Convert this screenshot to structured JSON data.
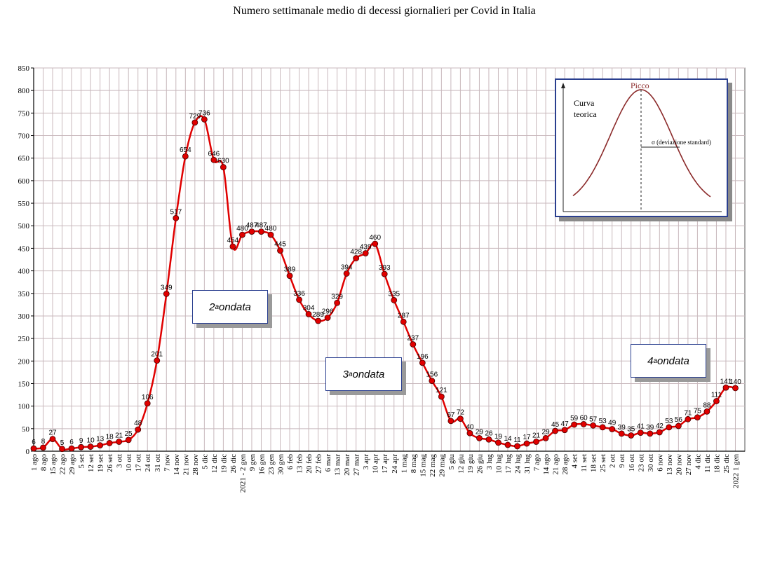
{
  "chart_data": {
    "type": "line",
    "title": "Numero settimanale medio di decessi giornalieri per Covid in Italia",
    "ylim": [
      0,
      850
    ],
    "yticks": [
      0,
      50,
      100,
      150,
      200,
      250,
      300,
      350,
      400,
      450,
      500,
      550,
      600,
      650,
      700,
      750,
      800,
      850
    ],
    "grid": true,
    "line_color": "#e00000",
    "marker_color": "#e00000",
    "categories": [
      "1 ago",
      "8 ago",
      "15 ago",
      "22 ago",
      "29 ago",
      "5 set",
      "12 set",
      "19 set",
      "26 set",
      "3 ott",
      "10 ott",
      "17 ott",
      "24 ott",
      "31 ott",
      "7 nov",
      "14 nov",
      "21 nov",
      "28 nov",
      "5 dic",
      "12 dic",
      "19 dic",
      "26 dic",
      "2021 - 2 gen",
      "9 gen",
      "16 gen",
      "23 gen",
      "30 gen",
      "6 feb",
      "13 feb",
      "20 feb",
      "27 feb",
      "6 mar",
      "13 mar",
      "20 mar",
      "27 mar",
      "3 apr",
      "10 apr",
      "17 apr",
      "24 apr",
      "1 mag",
      "8 mag",
      "15 mag",
      "22 mag",
      "29 mag",
      "5 giu",
      "12 giu",
      "19 giu",
      "26 giu",
      "3 lug",
      "10 lug",
      "17 lug",
      "24 lug",
      "31 lug",
      "7 ago",
      "14 ago",
      "21 ago",
      "28 ago",
      "4 set",
      "11 set",
      "18 set",
      "25 set",
      "2 ott",
      "9 ott",
      "16 ott",
      "23 ott",
      "30 ott",
      "6 nov",
      "13 nov",
      "20 nov",
      "27 nov",
      "4 dic",
      "11 dic",
      "18 dic",
      "25 dic",
      "2022 1 gen"
    ],
    "category_labels_shown": [
      "1 ago",
      "8 ago",
      "15 ago",
      "22 ago",
      "29 ago",
      "5 set",
      "12 set",
      "19 set",
      "26 set",
      "3 ott",
      "10 ott",
      "17 ott",
      "24 ott",
      "31 ott",
      "7 nov",
      "14 nov",
      "21 nov",
      "28 nov",
      "5 dic",
      "12 dic",
      "19 dic",
      "26 dic",
      "2021 - 2 gen",
      "9 gen",
      "16 gen",
      "23 gen",
      "30 gen",
      "6 feb",
      "13 feb",
      "20 feb",
      "27 feb",
      "6 mar",
      "13 mar",
      "20 mar",
      "27 mar",
      "3 apr",
      "10 apr",
      "17 apr",
      "24 apr",
      "1 mag",
      "8 mag",
      "15 mag",
      "22 mag",
      "29 mag",
      "5 giu",
      "12 giu",
      "19 giu",
      "26 giu",
      "3 lug",
      "10 lug",
      "17 lug",
      "24 lug",
      "31 lug",
      "7 ago",
      "14 ago",
      "21 ago",
      "28 ago",
      "4 set",
      "11 set",
      "18 set",
      "25 set",
      "2 ott",
      "9 ott",
      "16 ott",
      "23 ott",
      "30 ott",
      "6 nov",
      "13 nov",
      "20 nov",
      "27 nov",
      "4 dic",
      "11 dic",
      "18 dic",
      "25 dic",
      "2022 1 gen"
    ],
    "values": [
      6,
      8,
      27,
      5,
      6,
      9,
      10,
      13,
      18,
      21,
      25,
      48,
      106,
      201,
      349,
      517,
      654,
      729,
      736,
      646,
      630,
      454,
      480,
      487,
      487,
      480,
      445,
      389,
      336,
      304,
      289,
      296,
      329,
      394,
      428,
      439,
      460,
      393,
      335,
      287,
      237,
      196,
      156,
      121,
      67,
      72,
      40,
      29,
      26,
      19,
      14,
      11,
      17,
      21,
      29,
      45,
      47,
      59,
      60,
      57,
      53,
      49,
      39,
      35,
      41,
      39,
      42,
      53,
      56,
      71,
      75,
      88,
      111,
      141,
      140
    ],
    "data_labels": [
      "6",
      "8",
      "27",
      "5",
      "6",
      "9",
      "10",
      "13",
      "18",
      "21",
      "25",
      "48",
      "106",
      "201",
      "349",
      "517",
      "654",
      "729",
      "736",
      "646",
      "630",
      "454",
      "480",
      "487",
      "487",
      "480",
      "445",
      "389",
      "336",
      "304",
      "289",
      "296",
      "329",
      "394",
      "428",
      "439",
      "460",
      "393",
      "335",
      "287",
      "237",
      "196",
      "156",
      "121",
      "67",
      "72",
      "40",
      "29",
      "26",
      "19",
      "14",
      "11",
      "17",
      "21",
      "29",
      "45",
      "47",
      "59",
      "60",
      "57",
      "53",
      "49",
      "39",
      "35",
      "41",
      "39",
      "42",
      "53",
      "56",
      "71",
      "75",
      "88",
      "111",
      "141",
      "140"
    ],
    "annotations": [
      {
        "base": "2",
        "sup": "a",
        "text": " ondata"
      },
      {
        "base": "3",
        "sup": "a",
        "text": " ondata"
      },
      {
        "base": "4",
        "sup": "a",
        "text": " ondata"
      }
    ]
  },
  "inset": {
    "peak_label": "Picco",
    "curve_label_1": "Curva",
    "curve_label_2": "teorica",
    "sigma_label": "σ  (deviazione standard)",
    "curve_color": "#8b2a2a"
  }
}
